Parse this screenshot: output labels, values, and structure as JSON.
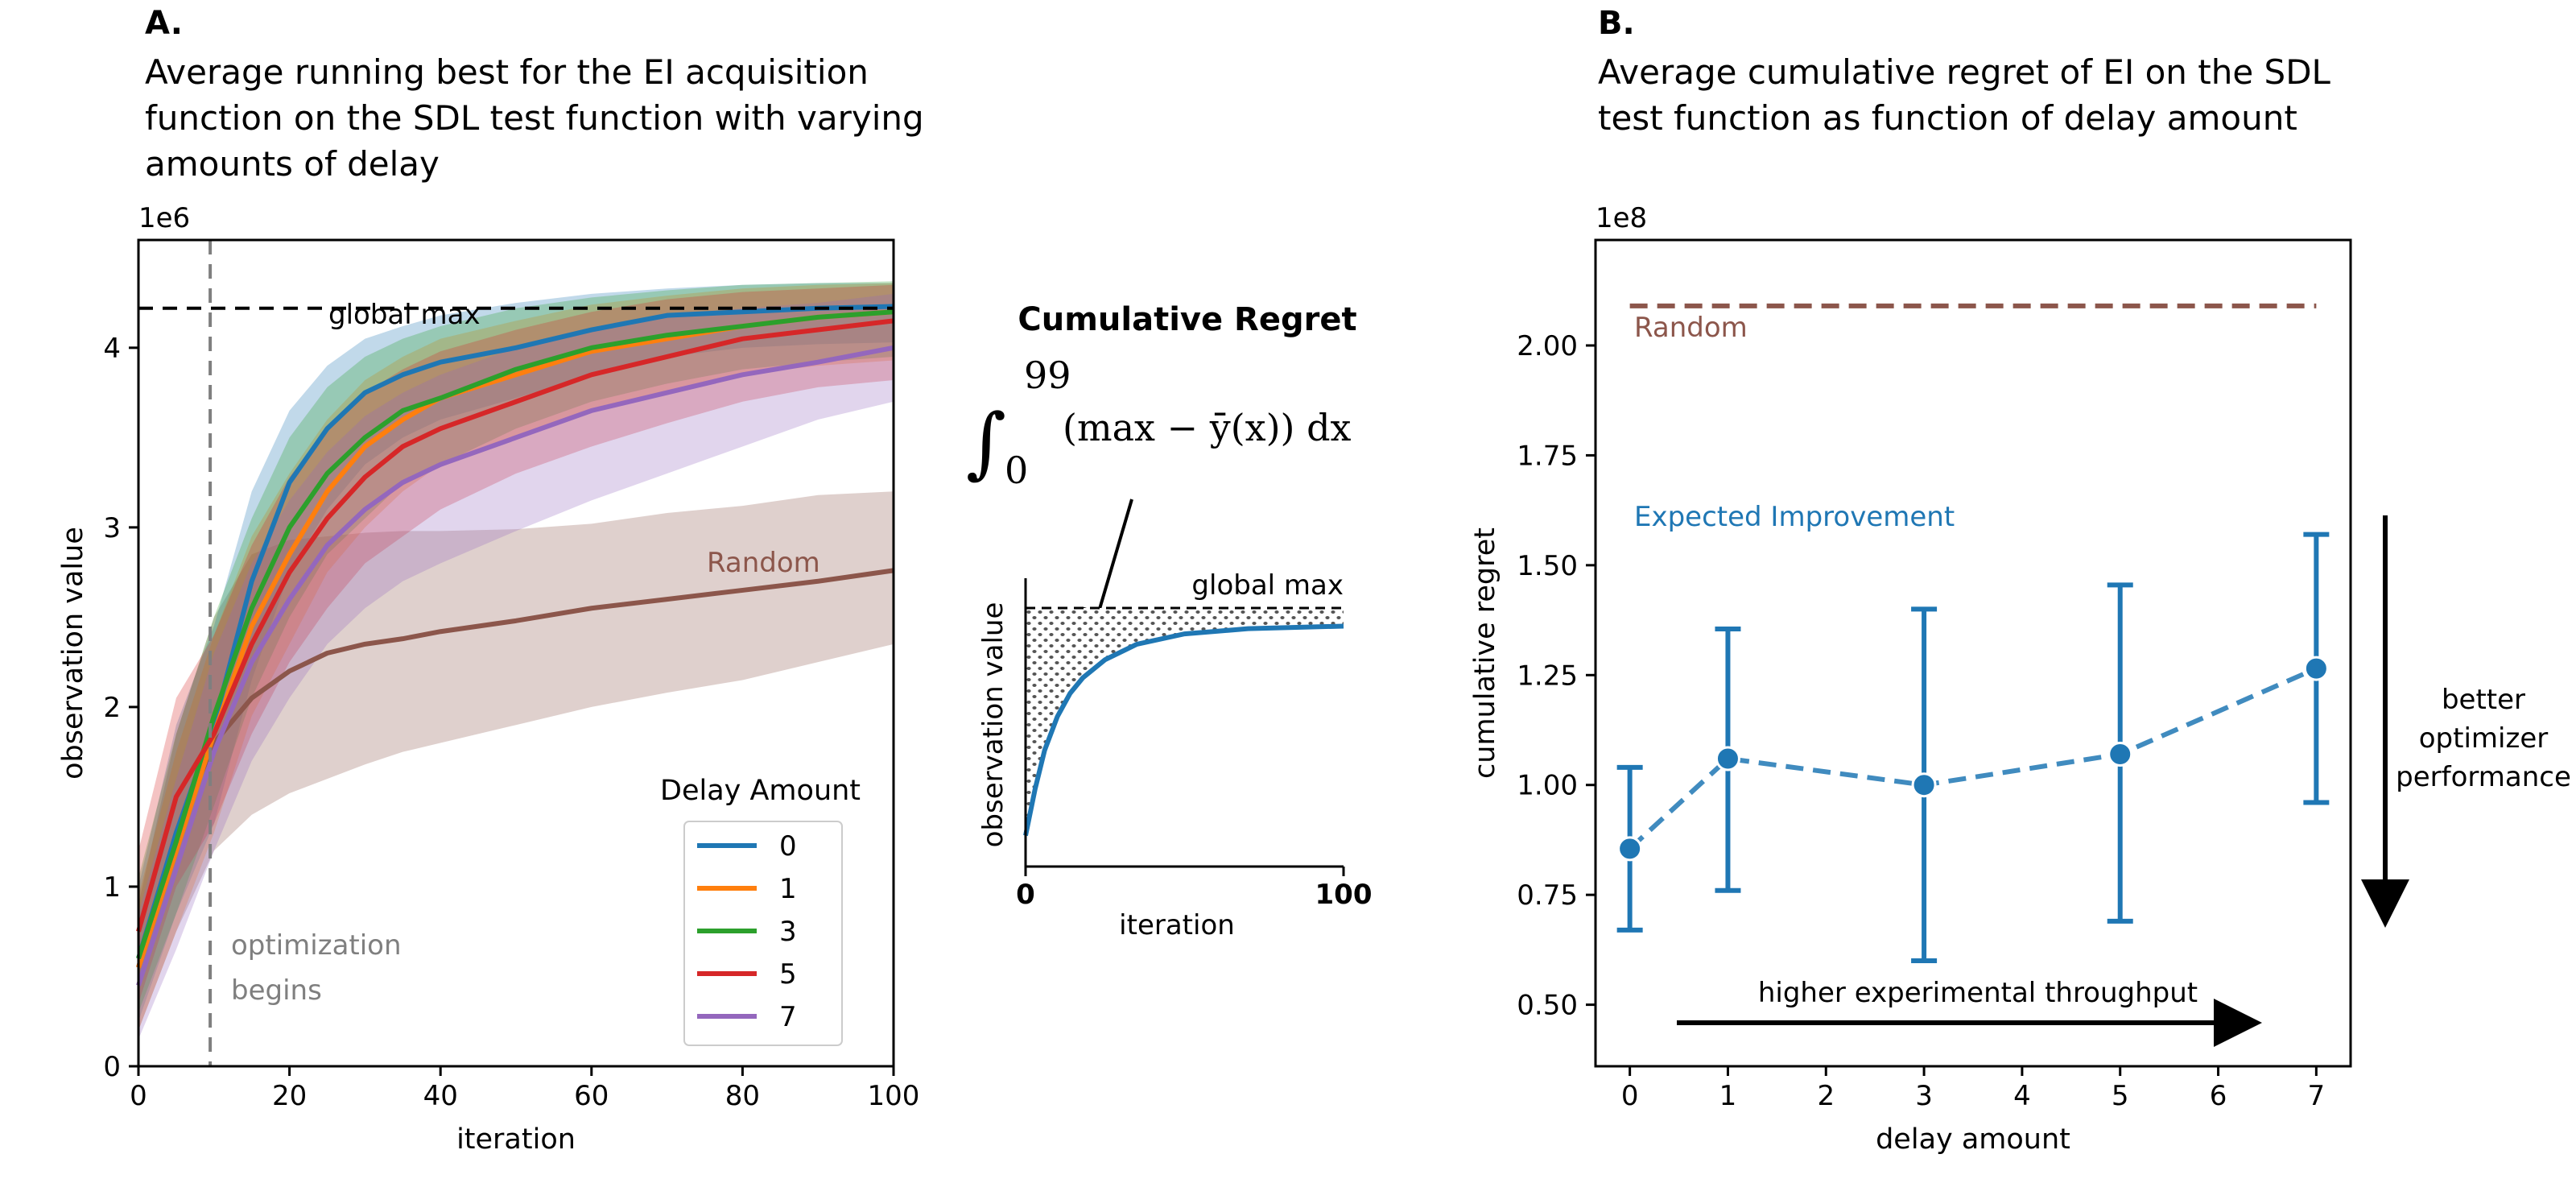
{
  "panels": {
    "a": {
      "letter": "A.",
      "title_lines": [
        "Average running best for the EI acquisition",
        "function on the SDL test function with varying",
        "amounts of delay"
      ]
    },
    "b": {
      "letter": "B.",
      "title_lines": [
        "Average cumulative regret of EI on the SDL",
        "test function as function of delay amount"
      ]
    }
  },
  "inset": {
    "title": "Cumulative Regret",
    "formula_upper": "99",
    "formula_lower": "0",
    "formula_body": "(max − ȳ(x)) dx",
    "ylabel": "observation value",
    "xlabel": "iteration",
    "xticks": [
      "0",
      "100"
    ],
    "global_max_label": "global max"
  },
  "colors": {
    "delay_0": "#1f77b4",
    "delay_1": "#ff7f0e",
    "delay_3": "#2ca02c",
    "delay_5": "#d62728",
    "delay_7": "#9467bd",
    "random": "#8c564b",
    "gray": "#7f7f7f"
  },
  "chart_data": [
    {
      "type": "line",
      "xlabel": "iteration",
      "ylabel": "observation value",
      "y_scale_note": "1e6",
      "xlim": [
        0,
        100
      ],
      "ylim": [
        0,
        4.6
      ],
      "xticks": [
        "0",
        "20",
        "40",
        "60",
        "80",
        "100"
      ],
      "yticks": [
        "0",
        "1",
        "2",
        "3",
        "4"
      ],
      "global_max": 4.22,
      "global_max_label": "global max",
      "optimization_begins_x": 9.5,
      "optimization_begins_label": [
        "optimization",
        "begins"
      ],
      "random_label": "Random",
      "legend_title": "Delay Amount",
      "legend_placement": "lower right",
      "series": [
        {
          "name": "0",
          "color": "#1f77b4",
          "points": [
            [
              0,
              0.6
            ],
            [
              5,
              1.3
            ],
            [
              10,
              1.9
            ],
            [
              15,
              2.7
            ],
            [
              20,
              3.25
            ],
            [
              25,
              3.55
            ],
            [
              30,
              3.75
            ],
            [
              35,
              3.85
            ],
            [
              40,
              3.92
            ],
            [
              50,
              4.0
            ],
            [
              60,
              4.1
            ],
            [
              70,
              4.18
            ],
            [
              80,
              4.2
            ],
            [
              90,
              4.22
            ],
            [
              100,
              4.23
            ]
          ],
          "band": [
            [
              0,
              0.25,
              1.0
            ],
            [
              5,
              0.85,
              1.9
            ],
            [
              10,
              1.35,
              2.45
            ],
            [
              15,
              2.15,
              3.2
            ],
            [
              20,
              2.75,
              3.65
            ],
            [
              25,
              3.1,
              3.9
            ],
            [
              30,
              3.35,
              4.05
            ],
            [
              35,
              3.5,
              4.12
            ],
            [
              40,
              3.6,
              4.18
            ],
            [
              50,
              3.72,
              4.25
            ],
            [
              60,
              3.85,
              4.3
            ],
            [
              70,
              3.95,
              4.33
            ],
            [
              80,
              4.0,
              4.35
            ],
            [
              90,
              4.02,
              4.36
            ],
            [
              100,
              4.03,
              4.36
            ]
          ]
        },
        {
          "name": "1",
          "color": "#ff7f0e",
          "points": [
            [
              0,
              0.55
            ],
            [
              5,
              1.2
            ],
            [
              10,
              1.85
            ],
            [
              15,
              2.45
            ],
            [
              20,
              2.85
            ],
            [
              25,
              3.2
            ],
            [
              30,
              3.45
            ],
            [
              35,
              3.6
            ],
            [
              40,
              3.72
            ],
            [
              50,
              3.85
            ],
            [
              60,
              3.98
            ],
            [
              70,
              4.05
            ],
            [
              80,
              4.12
            ],
            [
              90,
              4.17
            ],
            [
              100,
              4.2
            ]
          ],
          "band": [
            [
              0,
              0.2,
              0.95
            ],
            [
              5,
              0.75,
              1.75
            ],
            [
              10,
              1.3,
              2.4
            ],
            [
              15,
              1.95,
              2.95
            ],
            [
              20,
              2.35,
              3.3
            ],
            [
              25,
              2.75,
              3.6
            ],
            [
              30,
              3.0,
              3.82
            ],
            [
              35,
              3.2,
              3.95
            ],
            [
              40,
              3.35,
              4.05
            ],
            [
              50,
              3.5,
              4.15
            ],
            [
              60,
              3.65,
              4.24
            ],
            [
              70,
              3.75,
              4.29
            ],
            [
              80,
              3.85,
              4.33
            ],
            [
              90,
              3.9,
              4.35
            ],
            [
              100,
              3.93,
              4.36
            ]
          ]
        },
        {
          "name": "3",
          "color": "#2ca02c",
          "points": [
            [
              0,
              0.6
            ],
            [
              5,
              1.25
            ],
            [
              10,
              1.95
            ],
            [
              15,
              2.55
            ],
            [
              20,
              3.0
            ],
            [
              25,
              3.3
            ],
            [
              30,
              3.5
            ],
            [
              35,
              3.65
            ],
            [
              40,
              3.72
            ],
            [
              50,
              3.88
            ],
            [
              60,
              4.0
            ],
            [
              70,
              4.07
            ],
            [
              80,
              4.12
            ],
            [
              90,
              4.17
            ],
            [
              100,
              4.2
            ]
          ],
          "band": [
            [
              0,
              0.3,
              1.05
            ],
            [
              5,
              0.85,
              1.85
            ],
            [
              10,
              1.45,
              2.5
            ],
            [
              15,
              2.05,
              3.05
            ],
            [
              20,
              2.5,
              3.5
            ],
            [
              25,
              2.85,
              3.78
            ],
            [
              30,
              3.05,
              3.95
            ],
            [
              35,
              3.25,
              4.05
            ],
            [
              40,
              3.35,
              4.12
            ],
            [
              50,
              3.55,
              4.22
            ],
            [
              60,
              3.7,
              4.28
            ],
            [
              70,
              3.8,
              4.32
            ],
            [
              80,
              3.88,
              4.35
            ],
            [
              90,
              3.92,
              4.36
            ],
            [
              100,
              3.95,
              4.37
            ]
          ]
        },
        {
          "name": "5",
          "color": "#d62728",
          "points": [
            [
              0,
              0.75
            ],
            [
              5,
              1.5
            ],
            [
              10,
              1.85
            ],
            [
              15,
              2.35
            ],
            [
              20,
              2.75
            ],
            [
              25,
              3.05
            ],
            [
              30,
              3.28
            ],
            [
              35,
              3.45
            ],
            [
              40,
              3.55
            ],
            [
              50,
              3.7
            ],
            [
              60,
              3.85
            ],
            [
              70,
              3.95
            ],
            [
              80,
              4.05
            ],
            [
              90,
              4.1
            ],
            [
              100,
              4.15
            ]
          ],
          "band": [
            [
              0,
              0.35,
              1.2
            ],
            [
              5,
              1.0,
              2.05
            ],
            [
              10,
              1.35,
              2.4
            ],
            [
              15,
              1.85,
              2.9
            ],
            [
              20,
              2.25,
              3.28
            ],
            [
              25,
              2.55,
              3.55
            ],
            [
              30,
              2.8,
              3.75
            ],
            [
              35,
              2.95,
              3.88
            ],
            [
              40,
              3.1,
              3.98
            ],
            [
              50,
              3.3,
              4.1
            ],
            [
              60,
              3.45,
              4.2
            ],
            [
              70,
              3.58,
              4.27
            ],
            [
              80,
              3.7,
              4.31
            ],
            [
              90,
              3.78,
              4.33
            ],
            [
              100,
              3.82,
              4.35
            ]
          ]
        },
        {
          "name": "7",
          "color": "#9467bd",
          "points": [
            [
              0,
              0.45
            ],
            [
              5,
              1.1
            ],
            [
              10,
              1.75
            ],
            [
              15,
              2.25
            ],
            [
              20,
              2.6
            ],
            [
              25,
              2.9
            ],
            [
              30,
              3.1
            ],
            [
              35,
              3.25
            ],
            [
              40,
              3.35
            ],
            [
              50,
              3.5
            ],
            [
              60,
              3.65
            ],
            [
              70,
              3.75
            ],
            [
              80,
              3.85
            ],
            [
              90,
              3.92
            ],
            [
              100,
              4.0
            ]
          ],
          "band": [
            [
              0,
              0.15,
              0.85
            ],
            [
              5,
              0.65,
              1.6
            ],
            [
              10,
              1.2,
              2.3
            ],
            [
              15,
              1.7,
              2.8
            ],
            [
              20,
              2.05,
              3.15
            ],
            [
              25,
              2.35,
              3.42
            ],
            [
              30,
              2.55,
              3.62
            ],
            [
              35,
              2.7,
              3.75
            ],
            [
              40,
              2.8,
              3.85
            ],
            [
              50,
              2.98,
              4.0
            ],
            [
              60,
              3.15,
              4.1
            ],
            [
              70,
              3.3,
              4.17
            ],
            [
              80,
              3.45,
              4.22
            ],
            [
              90,
              3.6,
              4.25
            ],
            [
              100,
              3.7,
              4.3
            ]
          ]
        },
        {
          "name": "Random",
          "color": "#8c564b",
          "points": [
            [
              0,
              0.55
            ],
            [
              5,
              1.3
            ],
            [
              10,
              1.8
            ],
            [
              15,
              2.05
            ],
            [
              20,
              2.2
            ],
            [
              25,
              2.3
            ],
            [
              30,
              2.35
            ],
            [
              35,
              2.38
            ],
            [
              40,
              2.42
            ],
            [
              50,
              2.48
            ],
            [
              60,
              2.55
            ],
            [
              70,
              2.6
            ],
            [
              80,
              2.65
            ],
            [
              90,
              2.7
            ],
            [
              100,
              2.76
            ]
          ],
          "band": [
            [
              0,
              0.2,
              0.9
            ],
            [
              5,
              0.75,
              1.85
            ],
            [
              10,
              1.2,
              2.5
            ],
            [
              15,
              1.4,
              2.85
            ],
            [
              20,
              1.52,
              2.93
            ],
            [
              25,
              1.6,
              2.95
            ],
            [
              30,
              1.68,
              2.97
            ],
            [
              35,
              1.75,
              2.98
            ],
            [
              40,
              1.8,
              2.98
            ],
            [
              50,
              1.9,
              2.99
            ],
            [
              60,
              2.0,
              3.02
            ],
            [
              70,
              2.08,
              3.08
            ],
            [
              80,
              2.15,
              3.12
            ],
            [
              90,
              2.25,
              3.18
            ],
            [
              100,
              2.35,
              3.2
            ]
          ]
        }
      ]
    },
    {
      "type": "scatter",
      "xlabel": "delay amount",
      "ylabel": "cumulative regret",
      "y_scale_note": "1e8",
      "xlim": [
        -0.35,
        7.35
      ],
      "ylim": [
        0.36,
        2.24
      ],
      "xticks": [
        "0",
        "1",
        "2",
        "3",
        "4",
        "5",
        "6",
        "7"
      ],
      "yticks": [
        "0.50",
        "0.75",
        "1.00",
        "1.25",
        "1.50",
        "1.75",
        "2.00"
      ],
      "series": [
        {
          "name": "Expected Improvement",
          "color": "#1f77b4",
          "x": [
            0,
            1,
            3,
            5,
            7
          ],
          "y": [
            0.855,
            1.06,
            1.0,
            1.07,
            1.265
          ],
          "err_low": [
            0.67,
            0.76,
            0.6,
            0.69,
            0.96
          ],
          "err_high": [
            1.04,
            1.355,
            1.4,
            1.455,
            1.57
          ]
        },
        {
          "name": "Random",
          "color": "#8c564b",
          "x": [
            0,
            7
          ],
          "y": [
            2.09,
            2.09
          ]
        }
      ],
      "annotations": {
        "throughput": "higher experimental throughput",
        "better_lines": [
          "better",
          "optimizer",
          "performance"
        ]
      }
    }
  ]
}
